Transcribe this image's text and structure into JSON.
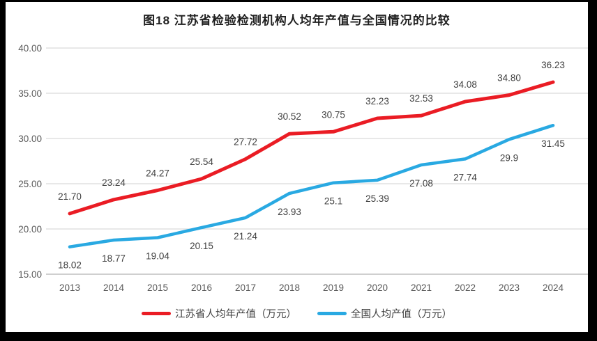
{
  "frame": {
    "background": "#000000",
    "card_background": "#ffffff"
  },
  "chart_data": {
    "type": "line",
    "title": "图18  江苏省检验检测机构人均年产值与全国情况的比较",
    "categories": [
      "2013",
      "2014",
      "2015",
      "2016",
      "2017",
      "2018",
      "2019",
      "2020",
      "2021",
      "2022",
      "2023",
      "2024"
    ],
    "series": [
      {
        "name": "江苏省人均年产值（万元）",
        "color": "#ea1c24",
        "values": [
          21.7,
          23.24,
          24.27,
          25.54,
          27.72,
          30.52,
          30.75,
          32.23,
          32.53,
          34.08,
          34.8,
          36.23
        ],
        "labels": [
          "21.70",
          "23.24",
          "24.27",
          "25.54",
          "27.72",
          "30.52",
          "30.75",
          "32.23",
          "32.53",
          "34.08",
          "34.80",
          "36.23"
        ]
      },
      {
        "name": "全国人均产值（万元）",
        "color": "#29a9e2",
        "values": [
          18.02,
          18.77,
          19.04,
          20.15,
          21.24,
          23.93,
          25.1,
          25.39,
          27.08,
          27.74,
          29.9,
          31.45
        ],
        "labels": [
          "18.02",
          "18.77",
          "19.04",
          "20.15",
          "21.24",
          "23.93",
          "25.1",
          "25.39",
          "27.08",
          "27.74",
          "29.9",
          "31.45"
        ]
      }
    ],
    "y_ticks": [
      "40.00",
      "35.00",
      "30.00",
      "25.00",
      "20.00",
      "15.00"
    ],
    "ylim": [
      15,
      40
    ],
    "xlabel": "",
    "ylabel": "",
    "grid": true,
    "legend_position": "bottom",
    "colors": {
      "gridline": "#d9d9d9",
      "axis_line": "#bfbfbf",
      "tick_text": "#595959",
      "label_text": "#404040",
      "title_text": "#1f1f1f"
    }
  }
}
